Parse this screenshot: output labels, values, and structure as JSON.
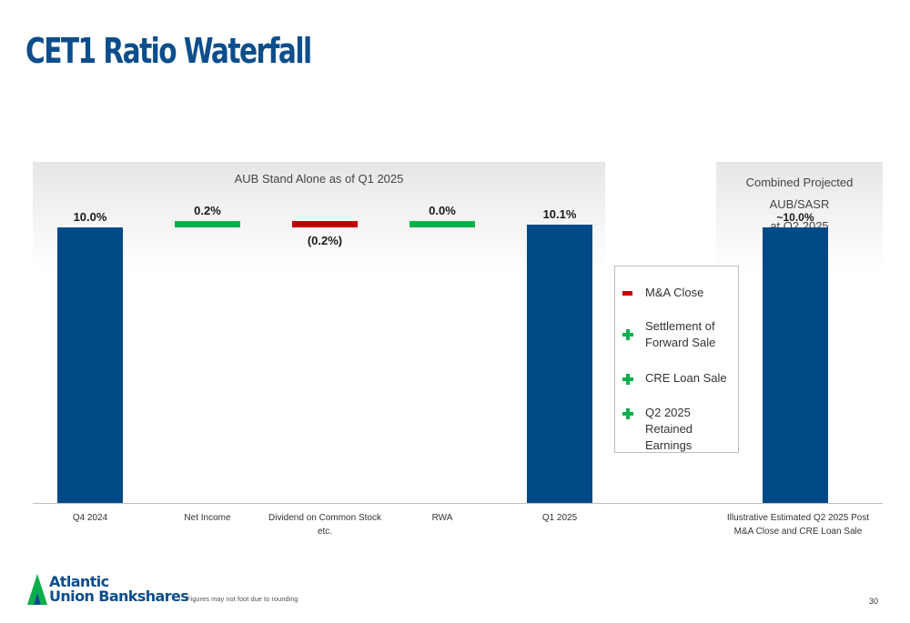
{
  "page": {
    "title": "CET1 Ratio Waterfall",
    "footnote": "Figures may not foot due to rounding",
    "page_number": "30"
  },
  "panels": {
    "left_header": "AUB Stand Alone as of Q1 2025",
    "right_header_line1": "Combined Projected AUB/SASR",
    "right_header_line2": "at Q2 2025"
  },
  "legend": {
    "items": [
      {
        "label_lines": [
          "M&A Close"
        ],
        "icon": "minus-icon",
        "color": "#c00000"
      },
      {
        "label_lines": [
          "Settlement of",
          "Forward Sale"
        ],
        "icon": "plus-icon",
        "color": "#09b04a"
      },
      {
        "label_lines": [
          "CRE Loan Sale"
        ],
        "icon": "plus-icon",
        "color": "#09b04a"
      },
      {
        "label_lines": [
          "Q2 2025 Retained",
          "Earnings"
        ],
        "icon": "plus-icon",
        "color": "#09b04a"
      }
    ]
  },
  "chart_data": {
    "type": "bar",
    "subtype": "waterfall",
    "ylim": [
      0,
      10.2
    ],
    "colors": {
      "total": "#004987",
      "increase": "#09b04a",
      "decrease": "#c00000"
    },
    "bars": [
      {
        "category_lines": [
          "Q4 2024"
        ],
        "kind": "total",
        "value": 10.0,
        "label": "10.0%"
      },
      {
        "category_lines": [
          "Net Income"
        ],
        "kind": "increase",
        "base": 10.0,
        "value": 0.2,
        "label": "0.2%"
      },
      {
        "category_lines": [
          "Dividend on Common Stock",
          "etc."
        ],
        "kind": "decrease",
        "base": 10.2,
        "value": -0.2,
        "label": "(0.2%)"
      },
      {
        "category_lines": [
          "RWA"
        ],
        "kind": "increase",
        "base": 10.0,
        "value": 0.0,
        "label": "0.0%"
      },
      {
        "category_lines": [
          "Q1 2025"
        ],
        "kind": "total",
        "value": 10.1,
        "label": "10.1%"
      },
      {
        "category_lines": [
          "Illustrative Estimated Q2 2025 Post",
          "M&A Close and CRE Loan Sale"
        ],
        "kind": "total",
        "value": 10.0,
        "label": "~10.0%"
      }
    ]
  },
  "logo": {
    "line1": "Atlantic",
    "line2": "Union Bankshares"
  }
}
